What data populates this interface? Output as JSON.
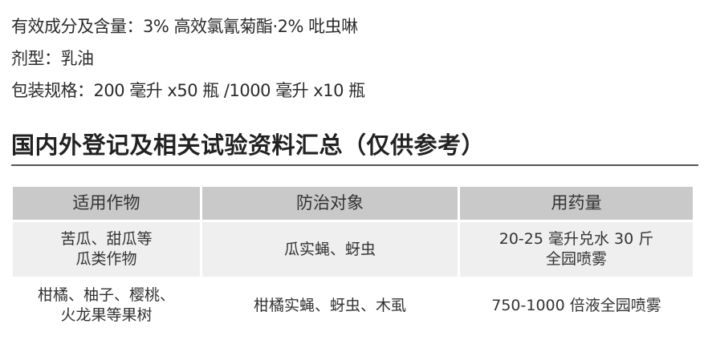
{
  "info": {
    "ingredient": "有效成分及含量：3% 高效氯氰菊酯·2% 吡虫啉",
    "formulation": "剂型：乳油",
    "packaging": "包装规格：200 毫升 x50 瓶 /1000 毫升 x10 瓶"
  },
  "section_title": "国内外登记及相关试验资料汇总（仅供参考）",
  "table": {
    "headers": [
      "适用作物",
      "防治对象",
      "用药量"
    ],
    "rows": [
      {
        "crop": "苦瓜、甜瓜等\n瓜类作物",
        "target": "瓜实蝇、蚜虫",
        "dosage": "20-25 毫升兑水 30 斤\n全园喷雾"
      },
      {
        "crop": "柑橘、柚子、樱桃、\n火龙果等果树",
        "target": "柑橘实蝇、蚜虫、木虱",
        "dosage": "750-1000 倍液全园喷雾"
      }
    ]
  }
}
